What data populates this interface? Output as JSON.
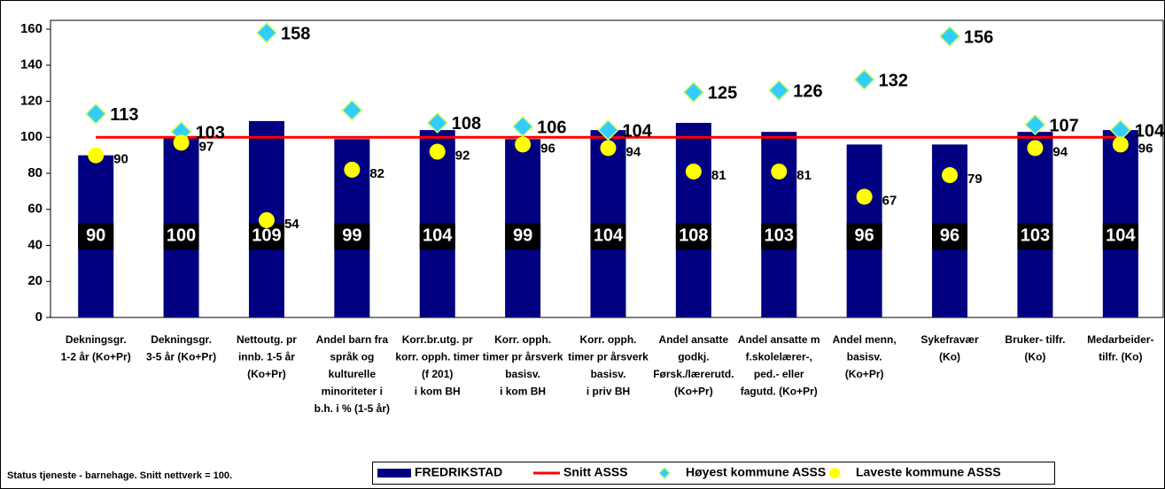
{
  "chart_data": {
    "type": "bar",
    "categories": [
      [
        "Dekningsgr.",
        "1-2 år (Ko+Pr)"
      ],
      [
        "Dekningsgr.",
        "3-5 år (Ko+Pr)"
      ],
      [
        "Nettoutg. pr",
        "innb. 1-5 år",
        "(Ko+Pr)"
      ],
      [
        "Andel barn fra",
        "språk og",
        "kulturelle",
        "minoriteter i",
        "b.h. i % (1-5 år)"
      ],
      [
        "Korr.br.utg. pr",
        "korr. opph. timer",
        "(f 201)",
        "i kom BH"
      ],
      [
        "Korr. opph.",
        "timer pr årsverk",
        "basisv.",
        "i kom BH"
      ],
      [
        "Korr. opph.",
        "timer pr årsverk",
        "basisv.",
        "i priv  BH"
      ],
      [
        "Andel ansatte",
        "godkj.",
        "Førsk./lærerutd.",
        "(Ko+Pr)"
      ],
      [
        "Andel ansatte m",
        "f.skolelærer-,",
        "ped.- eller",
        "fagutd. (Ko+Pr)"
      ],
      [
        "Andel menn,",
        "basisv.",
        "(Ko+Pr)"
      ],
      [
        "Sykefravær",
        "(Ko)"
      ],
      [
        "Bruker- tilfr.",
        "(Ko)"
      ],
      [
        "Medarbeider-",
        "tilfr.          (Ko)"
      ]
    ],
    "series": [
      {
        "name": "FREDRIKSTAD",
        "kind": "bar",
        "color": "#000080",
        "values": [
          90,
          100,
          109,
          99,
          104,
          99,
          104,
          108,
          103,
          96,
          96,
          103,
          104
        ]
      },
      {
        "name": "Snitt ASSS",
        "kind": "line",
        "color": "#ff0000",
        "values": [
          100,
          100,
          100,
          100,
          100,
          100,
          100,
          100,
          100,
          100,
          100,
          100,
          100
        ]
      },
      {
        "name": "Høyest kommune ASSS",
        "kind": "diamond",
        "color": "#33ccff",
        "values": [
          113,
          103,
          158,
          115,
          108,
          106,
          104,
          125,
          126,
          132,
          156,
          107,
          104
        ],
        "value_labels": [
          "113",
          "103",
          "158",
          null,
          "108",
          "106",
          "104",
          "125",
          "126",
          "132",
          "156",
          "107",
          "104"
        ]
      },
      {
        "name": "Laveste kommune ASSS",
        "kind": "circle",
        "color": "#ffff00",
        "values": [
          90,
          97,
          54,
          82,
          92,
          96,
          94,
          81,
          81,
          67,
          79,
          94,
          96
        ]
      }
    ],
    "ylim": [
      0,
      160
    ],
    "yticks": [
      0,
      20,
      40,
      60,
      80,
      100,
      120,
      140,
      160
    ],
    "note": "Status tjeneste - barnehage. Snitt nettverk = 100."
  }
}
